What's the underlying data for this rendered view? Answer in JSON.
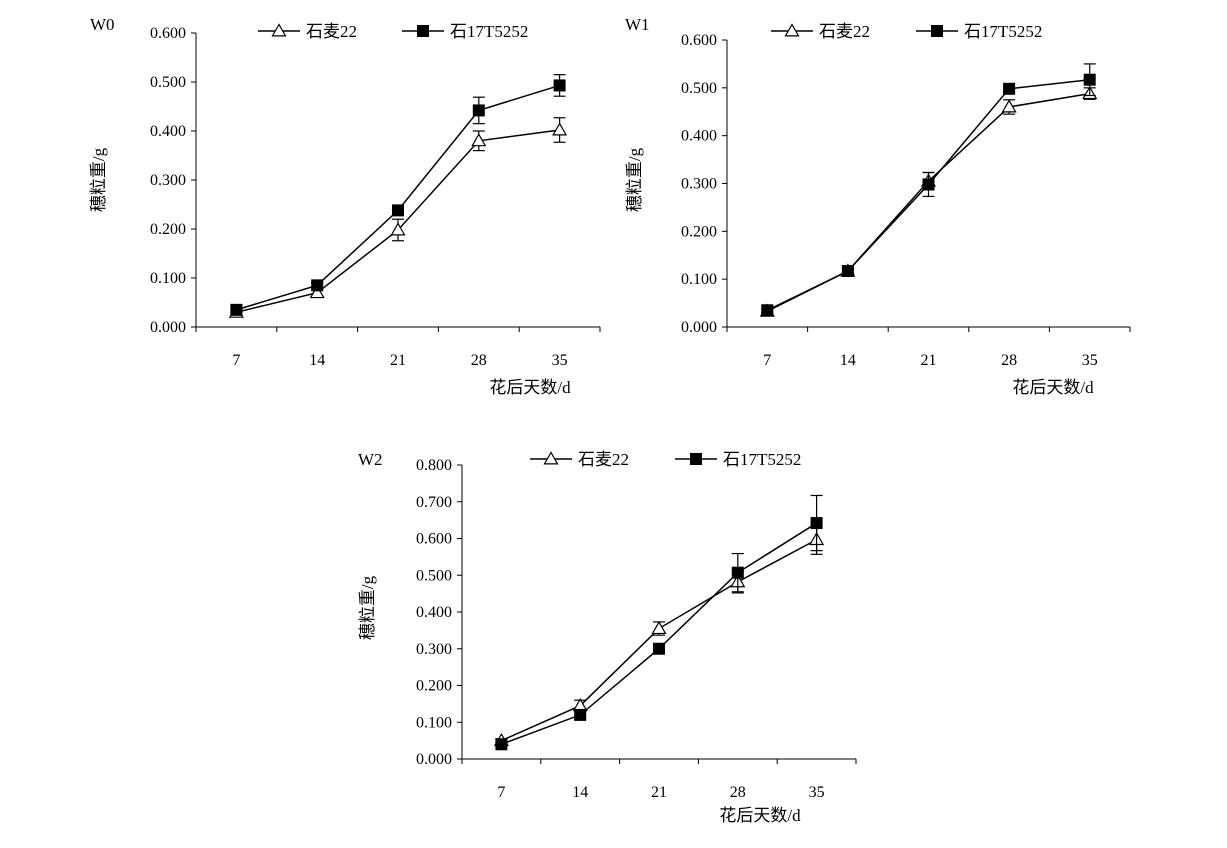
{
  "legend": {
    "series": [
      {
        "name": "石麦22",
        "marker": "open-triangle"
      },
      {
        "name": "石17T5252",
        "marker": "filled-square"
      }
    ]
  },
  "chart_data": [
    {
      "type": "line",
      "panel_label": "W0",
      "xlabel": "花后天数/d",
      "ylabel": "穗粒重/g",
      "categories": [
        "7",
        "14",
        "21",
        "28",
        "35"
      ],
      "ylim": [
        0,
        0.6
      ],
      "yticks": [
        "0.000",
        "0.100",
        "0.200",
        "0.300",
        "0.400",
        "0.500",
        "0.600"
      ],
      "legend_position": "top",
      "series": [
        {
          "name": "石麦22",
          "values": [
            0.03,
            0.07,
            0.198,
            0.38,
            0.402
          ],
          "errors": [
            0.005,
            0.008,
            0.022,
            0.02,
            0.025
          ]
        },
        {
          "name": "石17T5252",
          "values": [
            0.035,
            0.085,
            0.238,
            0.442,
            0.493
          ],
          "errors": [
            0.005,
            0.006,
            0.01,
            0.027,
            0.022
          ]
        }
      ]
    },
    {
      "type": "line",
      "panel_label": "W1",
      "xlabel": "花后天数/d",
      "ylabel": "穗粒重/g",
      "categories": [
        "7",
        "14",
        "21",
        "28",
        "35"
      ],
      "ylim": [
        0,
        0.6
      ],
      "yticks": [
        "0.000",
        "0.100",
        "0.200",
        "0.300",
        "0.400",
        "0.500",
        "0.600"
      ],
      "legend_position": "top",
      "series": [
        {
          "name": "石麦22",
          "values": [
            0.033,
            0.117,
            0.305,
            0.46,
            0.488
          ],
          "errors": [
            0.004,
            0.005,
            0.018,
            0.015,
            0.012
          ]
        },
        {
          "name": "石17T5252",
          "values": [
            0.035,
            0.117,
            0.298,
            0.498,
            0.517
          ],
          "errors": [
            0.004,
            0.005,
            0.025,
            0.006,
            0.033
          ]
        }
      ]
    },
    {
      "type": "line",
      "panel_label": "W2",
      "xlabel": "花后天数/d",
      "ylabel": "穗粒重/g",
      "categories": [
        "7",
        "14",
        "21",
        "28",
        "35"
      ],
      "ylim": [
        0,
        0.8
      ],
      "yticks": [
        "0.000",
        "0.100",
        "0.200",
        "0.300",
        "0.400",
        "0.500",
        "0.600",
        "0.700",
        "0.800"
      ],
      "legend_position": "top",
      "series": [
        {
          "name": "石麦22",
          "values": [
            0.05,
            0.145,
            0.355,
            0.482,
            0.597
          ],
          "errors": [
            0.005,
            0.015,
            0.018,
            0.03,
            0.04
          ]
        },
        {
          "name": "石17T5252",
          "values": [
            0.04,
            0.12,
            0.3,
            0.507,
            0.642
          ],
          "errors": [
            0.004,
            0.012,
            0.008,
            0.052,
            0.075
          ]
        }
      ]
    }
  ]
}
